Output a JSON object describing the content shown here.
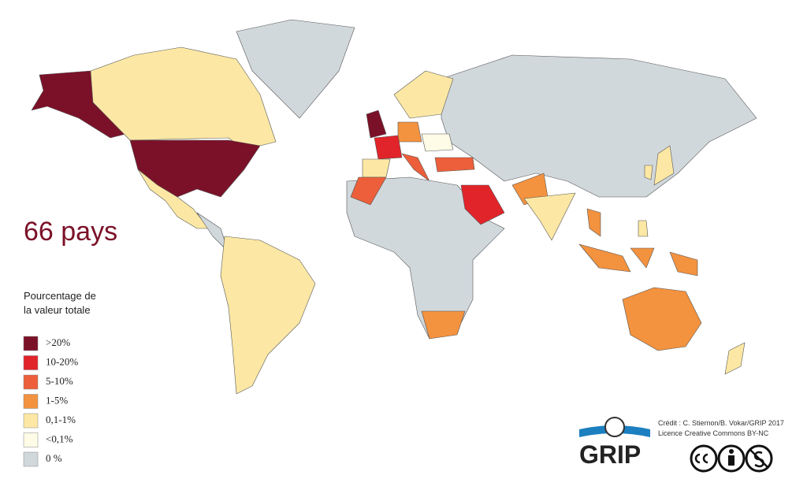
{
  "headline": "66 pays",
  "legend": {
    "title_lines": [
      "Pourcentage de",
      "la valeur totale"
    ],
    "items": [
      {
        "label": ">20%",
        "color": "#7b1128"
      },
      {
        "label": "10-20%",
        "color": "#e0242a"
      },
      {
        "label": "5-10%",
        "color": "#ec5f3a"
      },
      {
        "label": "1-5%",
        "color": "#f3923f"
      },
      {
        "label": "0,1-1%",
        "color": "#fce8a4"
      },
      {
        "label": "<0,1%",
        "color": "#fefbe6"
      },
      {
        "label": "0 %",
        "color": "#d1d8dc"
      }
    ]
  },
  "logo": "GRIP",
  "credits": [
    "Crédit : C. Stiernon/B. Vokar/GRIP 2017",
    "Licence Creative Commons BY-NC"
  ]
}
